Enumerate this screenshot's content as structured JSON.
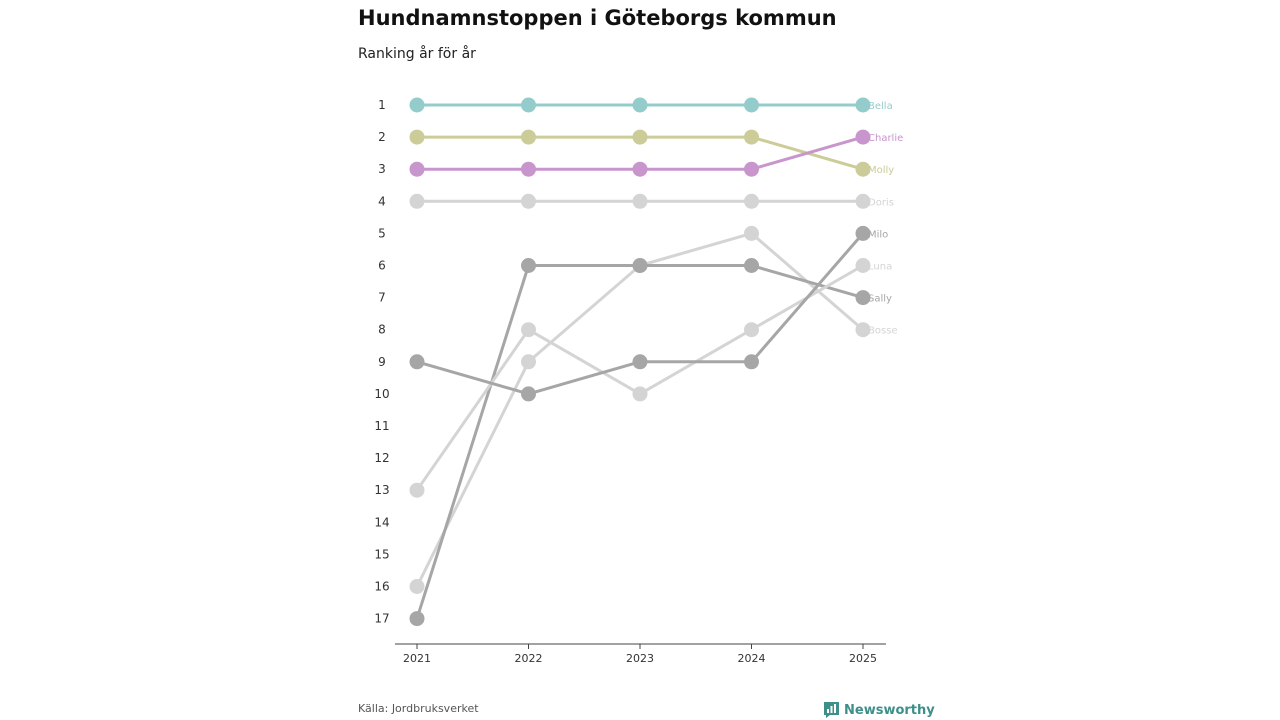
{
  "header": {
    "title": "Hundnamnstoppen i Göteborgs kommun",
    "subtitle": "Ranking år för år"
  },
  "footer": {
    "source": "Källa: Jordbruksverket",
    "brand": "Newsworthy",
    "brand_color": "#3e8f8a"
  },
  "chart_data": {
    "type": "line",
    "title": "Hundnamnstoppen i Göteborgs kommun",
    "subtitle": "Ranking år för år",
    "xlabel": "",
    "ylabel": "",
    "x": [
      "2021",
      "2022",
      "2023",
      "2024",
      "2025"
    ],
    "y_ticks": [
      1,
      2,
      3,
      4,
      5,
      6,
      7,
      8,
      9,
      10,
      11,
      12,
      13,
      14,
      15,
      16,
      17
    ],
    "ylim": [
      1,
      17
    ],
    "y_reversed": true,
    "grid": false,
    "series": [
      {
        "name": "Bella",
        "values": [
          1,
          1,
          1,
          1,
          1
        ],
        "color": "#93cccb"
      },
      {
        "name": "Charlie",
        "values": [
          3,
          3,
          3,
          3,
          2
        ],
        "color": "#c895cd"
      },
      {
        "name": "Molly",
        "values": [
          2,
          2,
          2,
          2,
          3
        ],
        "color": "#cccc99"
      },
      {
        "name": "Doris",
        "values": [
          4,
          4,
          4,
          4,
          4
        ],
        "color": "#d4d4d4"
      },
      {
        "name": "Milo",
        "values": [
          9,
          10,
          9,
          9,
          5
        ],
        "color": "#a6a6a6"
      },
      {
        "name": "Luna",
        "values": [
          13,
          8,
          10,
          8,
          6
        ],
        "color": "#d4d4d4"
      },
      {
        "name": "Sally",
        "values": [
          17,
          6,
          6,
          6,
          7
        ],
        "color": "#a6a6a6"
      },
      {
        "name": "Bosse",
        "values": [
          16,
          9,
          6,
          5,
          8
        ],
        "color": "#d4d4d4"
      }
    ]
  }
}
